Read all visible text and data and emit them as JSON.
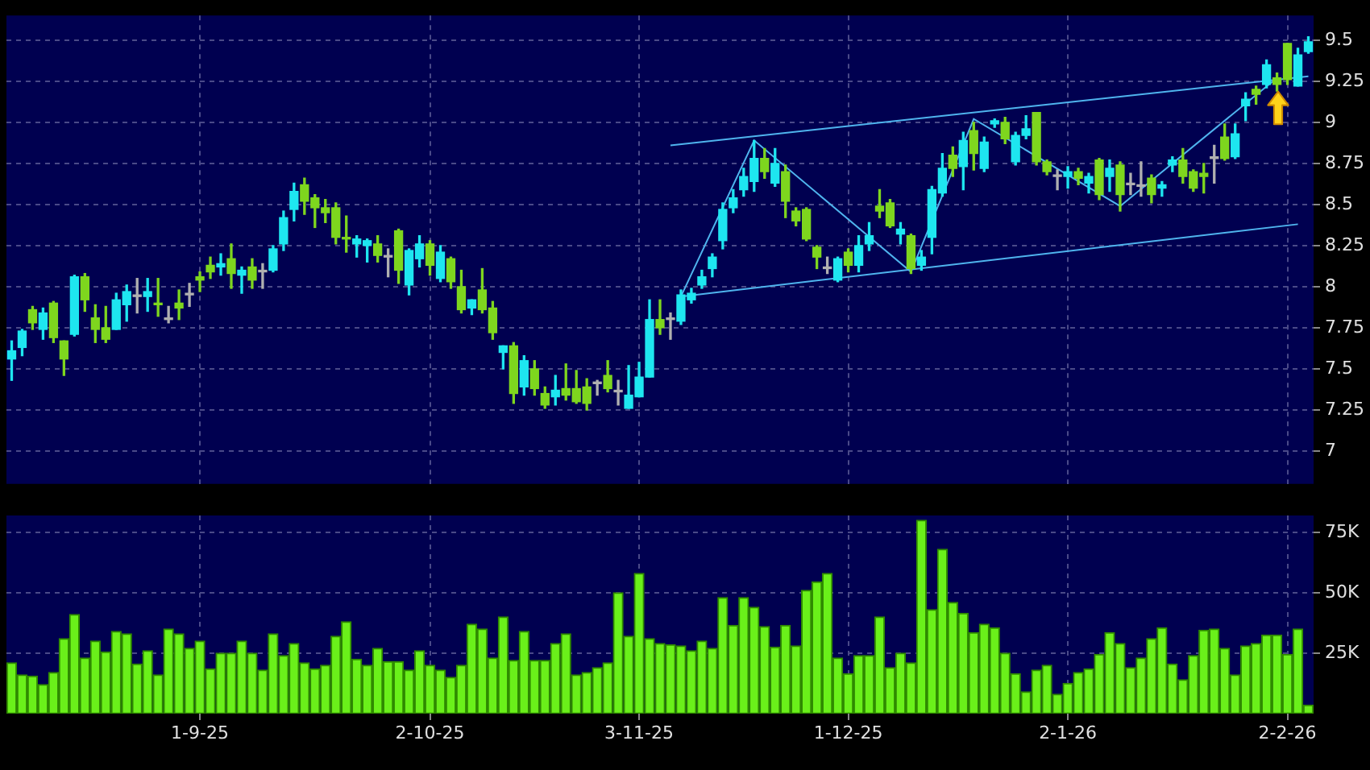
{
  "chart_data": [
    {
      "type": "candlestick",
      "categories": [
        null,
        null,
        null,
        null,
        null,
        null,
        null,
        null,
        null,
        null,
        null,
        null,
        null,
        null,
        null,
        null,
        null,
        null,
        null,
        null,
        null,
        null,
        null,
        null,
        null,
        null,
        null,
        null,
        null,
        null,
        null,
        null,
        null,
        null,
        null,
        null,
        null,
        null,
        null,
        null,
        null,
        null,
        null,
        null,
        null,
        null,
        null,
        null,
        null,
        null,
        null,
        null,
        null,
        null,
        null,
        null,
        null,
        null,
        null,
        null,
        null,
        null,
        null,
        null,
        null,
        null,
        null,
        null,
        null,
        null,
        null,
        null,
        null,
        null,
        null,
        null,
        null,
        null,
        null,
        null,
        null,
        null,
        null,
        null,
        null,
        null,
        null,
        null,
        null,
        null,
        null,
        null,
        null,
        null,
        null,
        null,
        null,
        null,
        null,
        null,
        null,
        null,
        null,
        null,
        null,
        null,
        null,
        null,
        null,
        null,
        null,
        null,
        null,
        null,
        null,
        null,
        null,
        null,
        null,
        null,
        null,
        null,
        null,
        null,
        null
      ],
      "ohlc": [
        [
          7.56,
          7.67,
          7.43,
          7.61
        ],
        [
          7.63,
          7.74,
          7.58,
          7.73
        ],
        [
          7.86,
          7.88,
          7.74,
          7.78
        ],
        [
          7.74,
          7.87,
          7.68,
          7.84
        ],
        [
          7.9,
          7.91,
          7.66,
          7.69
        ],
        [
          7.67,
          7.67,
          7.46,
          7.56
        ],
        [
          7.71,
          8.07,
          7.7,
          8.06
        ],
        [
          8.06,
          8.08,
          7.85,
          7.92
        ],
        [
          7.81,
          7.89,
          7.66,
          7.74
        ],
        [
          7.75,
          7.88,
          7.66,
          7.68
        ],
        [
          7.74,
          7.96,
          7.74,
          7.92
        ],
        [
          7.89,
          8.01,
          7.79,
          7.97
        ],
        [
          7.94,
          8.05,
          7.84,
          7.94
        ],
        [
          7.94,
          8.05,
          7.85,
          7.97
        ],
        [
          7.9,
          8.05,
          7.82,
          7.89
        ],
        [
          7.8,
          7.88,
          7.78,
          7.8
        ],
        [
          7.9,
          7.98,
          7.8,
          7.87
        ],
        [
          7.95,
          8.02,
          7.88,
          7.95
        ],
        [
          8.06,
          8.09,
          7.97,
          8.04
        ],
        [
          8.13,
          8.18,
          8.05,
          8.09
        ],
        [
          8.12,
          8.2,
          8.07,
          8.14
        ],
        [
          8.17,
          8.26,
          7.99,
          8.08
        ],
        [
          8.07,
          8.12,
          7.96,
          8.1
        ],
        [
          8.12,
          8.17,
          7.99,
          8.04
        ],
        [
          8.09,
          8.14,
          7.99,
          8.09
        ],
        [
          8.1,
          8.25,
          8.09,
          8.23
        ],
        [
          8.26,
          8.46,
          8.22,
          8.42
        ],
        [
          8.47,
          8.63,
          8.4,
          8.58
        ],
        [
          8.62,
          8.66,
          8.44,
          8.52
        ],
        [
          8.54,
          8.56,
          8.36,
          8.48
        ],
        [
          8.48,
          8.53,
          8.39,
          8.45
        ],
        [
          8.48,
          8.51,
          8.26,
          8.3
        ],
        [
          8.3,
          8.43,
          8.21,
          8.29
        ],
        [
          8.26,
          8.31,
          8.18,
          8.29
        ],
        [
          8.25,
          8.29,
          8.15,
          8.28
        ],
        [
          8.26,
          8.31,
          8.15,
          8.19
        ],
        [
          8.18,
          8.23,
          8.06,
          8.18
        ],
        [
          8.34,
          8.35,
          8.02,
          8.1
        ],
        [
          8.01,
          8.23,
          7.95,
          8.22
        ],
        [
          8.17,
          8.31,
          8.12,
          8.26
        ],
        [
          8.26,
          8.28,
          8.07,
          8.13
        ],
        [
          8.05,
          8.25,
          8.03,
          8.21
        ],
        [
          8.17,
          8.18,
          7.99,
          8.03
        ],
        [
          8.0,
          8.1,
          7.84,
          7.86
        ],
        [
          7.87,
          7.92,
          7.83,
          7.92
        ],
        [
          7.98,
          8.11,
          7.84,
          7.86
        ],
        [
          7.87,
          7.91,
          7.68,
          7.72
        ],
        [
          7.6,
          7.64,
          7.5,
          7.64
        ],
        [
          7.64,
          7.66,
          7.29,
          7.35
        ],
        [
          7.39,
          7.58,
          7.34,
          7.55
        ],
        [
          7.5,
          7.55,
          7.34,
          7.38
        ],
        [
          7.35,
          7.39,
          7.26,
          7.28
        ],
        [
          7.33,
          7.46,
          7.28,
          7.37
        ],
        [
          7.38,
          7.53,
          7.31,
          7.34
        ],
        [
          7.38,
          7.49,
          7.29,
          7.3
        ],
        [
          7.39,
          7.44,
          7.25,
          7.29
        ],
        [
          7.41,
          7.43,
          7.34,
          7.41
        ],
        [
          7.46,
          7.55,
          7.36,
          7.38
        ],
        [
          7.36,
          7.43,
          7.28,
          7.36
        ],
        [
          7.26,
          7.52,
          7.26,
          7.34
        ],
        [
          7.33,
          7.54,
          7.33,
          7.45
        ],
        [
          7.45,
          7.92,
          7.45,
          7.8
        ],
        [
          7.8,
          7.92,
          7.71,
          7.75
        ],
        [
          7.8,
          7.84,
          7.68,
          7.8
        ],
        [
          7.79,
          7.98,
          7.77,
          7.95
        ],
        [
          7.92,
          7.99,
          7.9,
          7.96
        ],
        [
          8.01,
          8.1,
          7.99,
          8.06
        ],
        [
          8.11,
          8.2,
          8.06,
          8.18
        ],
        [
          8.28,
          8.51,
          8.23,
          8.47
        ],
        [
          8.48,
          8.59,
          8.45,
          8.54
        ],
        [
          8.59,
          8.72,
          8.55,
          8.67
        ],
        [
          8.64,
          8.89,
          8.58,
          8.78
        ],
        [
          8.78,
          8.84,
          8.66,
          8.7
        ],
        [
          8.63,
          8.84,
          8.61,
          8.75
        ],
        [
          8.7,
          8.74,
          8.42,
          8.52
        ],
        [
          8.46,
          8.48,
          8.37,
          8.4
        ],
        [
          8.47,
          8.48,
          8.28,
          8.29
        ],
        [
          8.24,
          8.25,
          8.11,
          8.18
        ],
        [
          8.11,
          8.18,
          8.08,
          8.11
        ],
        [
          8.04,
          8.18,
          8.03,
          8.17
        ],
        [
          8.21,
          8.23,
          8.09,
          8.13
        ],
        [
          8.13,
          8.31,
          8.09,
          8.25
        ],
        [
          8.26,
          8.39,
          8.22,
          8.31
        ],
        [
          8.49,
          8.59,
          8.42,
          8.46
        ],
        [
          8.51,
          8.53,
          8.36,
          8.37
        ],
        [
          8.32,
          8.39,
          8.26,
          8.35
        ],
        [
          8.31,
          8.32,
          8.08,
          8.11
        ],
        [
          8.13,
          8.22,
          8.1,
          8.18
        ],
        [
          8.3,
          8.61,
          8.2,
          8.59
        ],
        [
          8.57,
          8.81,
          8.55,
          8.72
        ],
        [
          8.8,
          8.85,
          8.67,
          8.72
        ],
        [
          8.73,
          8.94,
          8.59,
          8.89
        ],
        [
          8.95,
          9.0,
          8.71,
          8.81
        ],
        [
          8.72,
          8.91,
          8.7,
          8.88
        ],
        [
          8.99,
          9.02,
          8.97,
          9.01
        ],
        [
          9.0,
          9.03,
          8.87,
          8.9
        ],
        [
          8.76,
          8.94,
          8.74,
          8.92
        ],
        [
          8.92,
          9.04,
          8.9,
          8.96
        ],
        [
          9.06,
          9.06,
          8.74,
          8.76
        ],
        [
          8.76,
          8.77,
          8.68,
          8.7
        ],
        [
          8.67,
          8.71,
          8.59,
          8.67
        ],
        [
          8.67,
          8.73,
          8.6,
          8.7
        ],
        [
          8.7,
          8.72,
          8.62,
          8.66
        ],
        [
          8.63,
          8.69,
          8.57,
          8.67
        ],
        [
          8.77,
          8.78,
          8.53,
          8.56
        ],
        [
          8.67,
          8.77,
          8.58,
          8.72
        ],
        [
          8.74,
          8.76,
          8.46,
          8.56
        ],
        [
          8.62,
          8.69,
          8.56,
          8.62
        ],
        [
          8.61,
          8.76,
          8.55,
          8.61
        ],
        [
          8.66,
          8.68,
          8.51,
          8.56
        ],
        [
          8.6,
          8.64,
          8.55,
          8.62
        ],
        [
          8.74,
          8.79,
          8.7,
          8.77
        ],
        [
          8.77,
          8.84,
          8.63,
          8.67
        ],
        [
          8.7,
          8.71,
          8.58,
          8.6
        ],
        [
          8.69,
          8.75,
          8.57,
          8.67
        ],
        [
          8.78,
          8.86,
          8.63,
          8.78
        ],
        [
          8.91,
          8.99,
          8.77,
          8.78
        ],
        [
          8.79,
          8.99,
          8.78,
          8.93
        ],
        [
          9.1,
          9.18,
          9.01,
          9.14
        ],
        [
          9.2,
          9.22,
          9.11,
          9.17
        ],
        [
          9.23,
          9.38,
          9.21,
          9.35
        ],
        [
          9.27,
          9.3,
          9.19,
          9.23
        ],
        [
          9.48,
          9.48,
          9.23,
          9.26
        ],
        [
          9.22,
          9.45,
          9.22,
          9.41
        ],
        [
          9.43,
          9.52,
          9.42,
          9.49
        ]
      ],
      "colors": [
        "#1ee6f0",
        "#1ee6f0",
        "#7ed61e",
        "#1ee6f0",
        "#7ed61e",
        "#7ed61e",
        "#1ee6f0",
        "#7ed61e",
        "#7ed61e",
        "#7ed61e",
        "#1ee6f0",
        "#1ee6f0",
        "#b0b0b0",
        "#1ee6f0",
        "#7ed61e",
        "#b0b0b0",
        "#7ed61e",
        "#b0b0b0",
        "#7ed61e",
        "#7ed61e",
        "#1ee6f0",
        "#7ed61e",
        "#1ee6f0",
        "#7ed61e",
        "#b0b0b0",
        "#1ee6f0",
        "#1ee6f0",
        "#1ee6f0",
        "#7ed61e",
        "#7ed61e",
        "#7ed61e",
        "#7ed61e",
        "#7ed61e",
        "#1ee6f0",
        "#1ee6f0",
        "#7ed61e",
        "#b0b0b0",
        "#7ed61e",
        "#1ee6f0",
        "#1ee6f0",
        "#7ed61e",
        "#1ee6f0",
        "#7ed61e",
        "#7ed61e",
        "#1ee6f0",
        "#7ed61e",
        "#7ed61e",
        "#1ee6f0",
        "#7ed61e",
        "#1ee6f0",
        "#7ed61e",
        "#7ed61e",
        "#1ee6f0",
        "#7ed61e",
        "#7ed61e",
        "#7ed61e",
        "#b0b0b0",
        "#7ed61e",
        "#b0b0b0",
        "#1ee6f0",
        "#1ee6f0",
        "#1ee6f0",
        "#7ed61e",
        "#b0b0b0",
        "#1ee6f0",
        "#1ee6f0",
        "#1ee6f0",
        "#1ee6f0",
        "#1ee6f0",
        "#1ee6f0",
        "#1ee6f0",
        "#1ee6f0",
        "#7ed61e",
        "#1ee6f0",
        "#7ed61e",
        "#7ed61e",
        "#7ed61e",
        "#7ed61e",
        "#b0b0b0",
        "#1ee6f0",
        "#7ed61e",
        "#1ee6f0",
        "#1ee6f0",
        "#7ed61e",
        "#7ed61e",
        "#1ee6f0",
        "#7ed61e",
        "#1ee6f0",
        "#1ee6f0",
        "#1ee6f0",
        "#7ed61e",
        "#1ee6f0",
        "#7ed61e",
        "#1ee6f0",
        "#1ee6f0",
        "#7ed61e",
        "#1ee6f0",
        "#1ee6f0",
        "#7ed61e",
        "#7ed61e",
        "#b0b0b0",
        "#1ee6f0",
        "#7ed61e",
        "#1ee6f0",
        "#7ed61e",
        "#1ee6f0",
        "#7ed61e",
        "#b0b0b0",
        "#b0b0b0",
        "#7ed61e",
        "#1ee6f0",
        "#1ee6f0",
        "#7ed61e",
        "#7ed61e",
        "#7ed61e",
        "#b0b0b0",
        "#7ed61e",
        "#1ee6f0",
        "#1ee6f0",
        "#7ed61e",
        "#1ee6f0",
        "#7ed61e",
        "#7ed61e",
        "#1ee6f0",
        "#1ee6f0"
      ],
      "series": [
        {
          "type": "line",
          "color": "#4fb4ee",
          "values": [
            null,
            null,
            null,
            null,
            null,
            null,
            null,
            null,
            null,
            null,
            null,
            null,
            null,
            null,
            null,
            null,
            null,
            null,
            null,
            null,
            null,
            null,
            null,
            null,
            null,
            null,
            null,
            null,
            null,
            null,
            null,
            null,
            null,
            null,
            null,
            null,
            null,
            null,
            null,
            null,
            null,
            null,
            null,
            null,
            null,
            null,
            null,
            null,
            null,
            null,
            null,
            null,
            null,
            null,
            null,
            null,
            null,
            null,
            null,
            null,
            null,
            null,
            null,
            8.86,
            null,
            null,
            null,
            null,
            null,
            null,
            null,
            null,
            null,
            null,
            null,
            null,
            null,
            null,
            null,
            null,
            null,
            null,
            null,
            null,
            null,
            null,
            null,
            null,
            null,
            null,
            null,
            null,
            null,
            null,
            null,
            null,
            null,
            null,
            null,
            null,
            null,
            null,
            null,
            null,
            null,
            null,
            null,
            null,
            null,
            null,
            null,
            null,
            null,
            null,
            null,
            null,
            null,
            null,
            null,
            null,
            null,
            null,
            null,
            null,
            9.28
          ]
        },
        {
          "type": "line",
          "color": "#4fb4ee",
          "values": [
            null,
            null,
            null,
            null,
            null,
            null,
            null,
            null,
            null,
            null,
            null,
            null,
            null,
            null,
            null,
            null,
            null,
            null,
            null,
            null,
            null,
            null,
            null,
            null,
            null,
            null,
            null,
            null,
            null,
            null,
            null,
            null,
            null,
            null,
            null,
            null,
            null,
            null,
            null,
            null,
            null,
            null,
            null,
            null,
            null,
            null,
            null,
            null,
            null,
            null,
            null,
            null,
            null,
            null,
            null,
            null,
            null,
            null,
            null,
            null,
            null,
            null,
            null,
            null,
            7.94,
            null,
            null,
            null,
            null,
            null,
            null,
            null,
            null,
            null,
            null,
            null,
            null,
            null,
            null,
            null,
            null,
            null,
            null,
            null,
            null,
            null,
            null,
            null,
            null,
            null,
            null,
            null,
            null,
            null,
            null,
            null,
            null,
            null,
            null,
            null,
            null,
            null,
            null,
            null,
            null,
            null,
            null,
            null,
            null,
            null,
            null,
            null,
            null,
            null,
            null,
            null,
            null,
            null,
            null,
            null,
            null,
            null,
            null,
            8.38,
            null
          ]
        },
        {
          "type": "line",
          "color": "#4fb4ee",
          "values": [
            null,
            null,
            null,
            null,
            null,
            null,
            null,
            null,
            null,
            null,
            null,
            null,
            null,
            null,
            null,
            null,
            null,
            null,
            null,
            null,
            null,
            null,
            null,
            null,
            null,
            null,
            null,
            null,
            null,
            null,
            null,
            null,
            null,
            null,
            null,
            null,
            null,
            null,
            null,
            null,
            null,
            null,
            null,
            null,
            null,
            null,
            null,
            null,
            null,
            null,
            null,
            null,
            null,
            null,
            null,
            null,
            null,
            null,
            null,
            null,
            null,
            null,
            null,
            null,
            7.94,
            null,
            null,
            null,
            null,
            null,
            null,
            8.89,
            null,
            null,
            null,
            null,
            null,
            null,
            null,
            null,
            null,
            null,
            null,
            null,
            null,
            null,
            8.09,
            null,
            null,
            null,
            null,
            null,
            9.02,
            null,
            null,
            null,
            null,
            null,
            null,
            null,
            null,
            null,
            null,
            null,
            null,
            null,
            8.49,
            null,
            null,
            null,
            null,
            null,
            null,
            null,
            null,
            null,
            null,
            null,
            null,
            null,
            null,
            9.27,
            null,
            null,
            null
          ]
        }
      ],
      "ylim": [
        6.8,
        9.65
      ],
      "yticks": [
        7,
        7.25,
        7.5,
        7.75,
        8,
        8.25,
        8.5,
        8.75,
        9,
        9.25,
        9.5
      ],
      "tick_labels": "y",
      "grid": true
    },
    {
      "type": "bar",
      "categories": [
        null,
        null,
        null,
        null,
        null,
        null,
        null,
        null,
        null,
        null,
        null,
        null,
        null,
        null,
        null,
        null,
        null,
        null,
        "1-9-25",
        null,
        null,
        null,
        null,
        null,
        null,
        null,
        null,
        null,
        null,
        null,
        null,
        null,
        null,
        null,
        null,
        null,
        null,
        null,
        null,
        null,
        "2-10-25",
        null,
        null,
        null,
        null,
        null,
        null,
        null,
        null,
        null,
        null,
        null,
        null,
        null,
        null,
        null,
        null,
        null,
        null,
        null,
        "3-11-25",
        null,
        null,
        null,
        null,
        null,
        null,
        null,
        null,
        null,
        null,
        null,
        null,
        null,
        null,
        null,
        null,
        null,
        null,
        null,
        "1-12-25",
        null,
        null,
        null,
        null,
        null,
        null,
        null,
        null,
        null,
        null,
        null,
        null,
        null,
        null,
        null,
        null,
        null,
        null,
        null,
        null,
        "2-1-26",
        null,
        null,
        null,
        null,
        null,
        null,
        null,
        null,
        null,
        null,
        null,
        null,
        null,
        null,
        null,
        null,
        null,
        null,
        null,
        null,
        "2-2-26",
        null,
        null
      ],
      "values": [
        21000,
        16000,
        15500,
        12000,
        17000,
        31000,
        41000,
        23000,
        30000,
        25500,
        34000,
        33000,
        20500,
        26000,
        16000,
        35000,
        33000,
        27000,
        30000,
        18500,
        25000,
        25000,
        30000,
        25000,
        18000,
        33000,
        24000,
        29000,
        21000,
        18500,
        20000,
        32000,
        38000,
        22500,
        20000,
        27000,
        21500,
        21500,
        18000,
        26000,
        20000,
        18000,
        15000,
        20000,
        37000,
        35000,
        23000,
        40000,
        22000,
        34000,
        22000,
        22000,
        29000,
        33000,
        16000,
        17000,
        19000,
        21000,
        50000,
        32000,
        58000,
        31000,
        29000,
        28500,
        28000,
        26000,
        30000,
        27000,
        48000,
        36500,
        48000,
        44000,
        36000,
        27500,
        36500,
        28000,
        51000,
        54500,
        58000,
        23000,
        16500,
        24000,
        24000,
        40000,
        19000,
        25000,
        21000,
        80000,
        43000,
        68000,
        46000,
        41500,
        33500,
        37000,
        35500,
        25000,
        16500,
        9000,
        18000,
        20000,
        8000,
        12500,
        17000,
        18500,
        24500,
        33500,
        29000,
        19000,
        23000,
        31000,
        35500,
        20500,
        14000,
        24000,
        34500,
        35000,
        27000,
        16000,
        28000,
        29000,
        32500,
        32500,
        24500,
        35000,
        3500
      ],
      "color": "#6af01a",
      "ylim": [
        0,
        82000
      ],
      "yticks": [
        {
          "value": 25000,
          "label": "25K"
        },
        {
          "value": 50000,
          "label": "50K"
        },
        {
          "value": 75000,
          "label": "75K"
        }
      ],
      "grid": true
    }
  ]
}
